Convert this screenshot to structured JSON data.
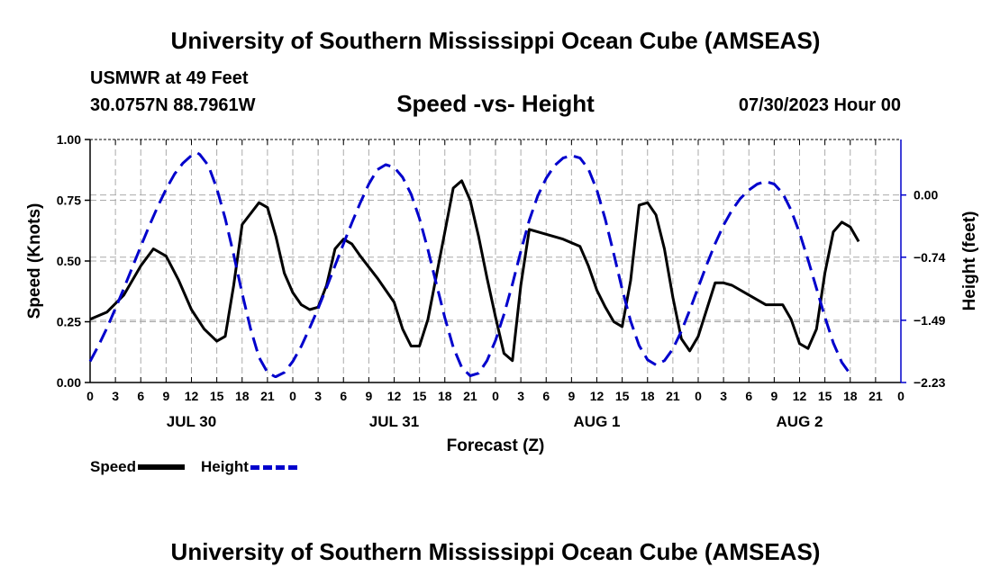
{
  "header": {
    "title": "University of Southern Mississippi Ocean Cube (AMSEAS)",
    "station": "USMWR at 49 Feet",
    "coords": "30.0757N  88.7961W",
    "chart_title": "Speed -vs- Height",
    "datetime": "07/30/2023 Hour 00"
  },
  "footer": {
    "title": "University of Southern Mississippi Ocean Cube (AMSEAS)"
  },
  "legend": {
    "speed_label": "Speed",
    "height_label": "Height"
  },
  "chart_data": {
    "type": "line",
    "title": "Speed -vs- Height",
    "xlabel": "Forecast (Z)",
    "ylabel": "Speed (Knots)",
    "y2label": "Height (feet)",
    "xlim": [
      0,
      96
    ],
    "ylim": [
      0,
      1
    ],
    "y2lim": [
      -2.23,
      0.66
    ],
    "x_ticks": [
      0,
      3,
      6,
      9,
      12,
      15,
      18,
      21,
      24,
      27,
      30,
      33,
      36,
      39,
      42,
      45,
      48,
      51,
      54,
      57,
      60,
      63,
      66,
      69,
      72,
      75,
      78,
      81,
      84,
      87,
      90,
      93,
      96
    ],
    "x_tick_labels": [
      "0",
      "3",
      "6",
      "9",
      "12",
      "15",
      "18",
      "21",
      "0",
      "3",
      "6",
      "9",
      "12",
      "15",
      "18",
      "21",
      "0",
      "3",
      "6",
      "9",
      "12",
      "15",
      "18",
      "21",
      "0",
      "3",
      "6",
      "9",
      "12",
      "15",
      "18",
      "21",
      "0"
    ],
    "date_labels": [
      {
        "x": 12,
        "label": "JUL 30"
      },
      {
        "x": 36,
        "label": "JUL 31"
      },
      {
        "x": 60,
        "label": "AUG 1"
      },
      {
        "x": 84,
        "label": "AUG 2"
      }
    ],
    "y_ticks": [
      0,
      0.25,
      0.5,
      0.75,
      1.0
    ],
    "y_tick_labels": [
      "0.00",
      "0.25",
      "0.50",
      "0.75",
      "1.00"
    ],
    "y2_ticks": [
      0,
      -0.74,
      -1.49,
      -2.23
    ],
    "y2_tick_labels": [
      "0.00",
      "−0.74",
      "−1.49",
      "−2.23"
    ],
    "grid": true,
    "series": [
      {
        "name": "Speed",
        "axis": "left",
        "color": "#000000",
        "style": "solid",
        "points": [
          [
            0,
            0.26
          ],
          [
            2,
            0.29
          ],
          [
            4,
            0.36
          ],
          [
            6,
            0.48
          ],
          [
            7.5,
            0.55
          ],
          [
            9,
            0.52
          ],
          [
            10.5,
            0.42
          ],
          [
            12,
            0.3
          ],
          [
            13.5,
            0.22
          ],
          [
            15,
            0.17
          ],
          [
            16,
            0.19
          ],
          [
            17,
            0.4
          ],
          [
            18,
            0.65
          ],
          [
            20,
            0.74
          ],
          [
            21,
            0.72
          ],
          [
            22,
            0.6
          ],
          [
            23,
            0.45
          ],
          [
            24,
            0.37
          ],
          [
            25,
            0.32
          ],
          [
            26,
            0.3
          ],
          [
            27,
            0.31
          ],
          [
            28,
            0.4
          ],
          [
            29,
            0.55
          ],
          [
            30,
            0.59
          ],
          [
            31,
            0.57
          ],
          [
            32,
            0.52
          ],
          [
            34,
            0.43
          ],
          [
            36,
            0.33
          ],
          [
            37,
            0.22
          ],
          [
            38,
            0.15
          ],
          [
            39,
            0.15
          ],
          [
            40,
            0.26
          ],
          [
            41,
            0.44
          ],
          [
            42,
            0.62
          ],
          [
            43,
            0.8
          ],
          [
            44,
            0.83
          ],
          [
            45,
            0.75
          ],
          [
            46,
            0.6
          ],
          [
            47,
            0.43
          ],
          [
            48,
            0.27
          ],
          [
            49,
            0.12
          ],
          [
            50,
            0.09
          ],
          [
            51,
            0.4
          ],
          [
            52,
            0.63
          ],
          [
            54,
            0.61
          ],
          [
            56,
            0.59
          ],
          [
            58,
            0.56
          ],
          [
            59,
            0.48
          ],
          [
            60,
            0.38
          ],
          [
            61,
            0.31
          ],
          [
            62,
            0.25
          ],
          [
            63,
            0.23
          ],
          [
            64,
            0.42
          ],
          [
            65,
            0.73
          ],
          [
            66,
            0.74
          ],
          [
            67,
            0.69
          ],
          [
            68,
            0.55
          ],
          [
            69,
            0.35
          ],
          [
            70,
            0.18
          ],
          [
            71,
            0.13
          ],
          [
            72,
            0.19
          ],
          [
            73,
            0.3
          ],
          [
            74,
            0.41
          ],
          [
            75,
            0.41
          ],
          [
            76,
            0.4
          ],
          [
            78,
            0.36
          ],
          [
            80,
            0.32
          ],
          [
            82,
            0.32
          ],
          [
            83,
            0.26
          ],
          [
            84,
            0.16
          ],
          [
            85,
            0.14
          ],
          [
            86,
            0.22
          ],
          [
            87,
            0.45
          ],
          [
            88,
            0.62
          ],
          [
            89,
            0.66
          ],
          [
            90,
            0.64
          ],
          [
            91,
            0.58
          ]
        ]
      },
      {
        "name": "Height",
        "axis": "right",
        "color": "#0000cc",
        "style": "dashed",
        "points": [
          [
            0,
            -1.98
          ],
          [
            1,
            -1.79
          ],
          [
            2,
            -1.58
          ],
          [
            3,
            -1.35
          ],
          [
            4,
            -1.11
          ],
          [
            5,
            -0.86
          ],
          [
            6,
            -0.61
          ],
          [
            7,
            -0.37
          ],
          [
            8,
            -0.14
          ],
          [
            9,
            0.07
          ],
          [
            10,
            0.25
          ],
          [
            11,
            0.38
          ],
          [
            12,
            0.47
          ],
          [
            12.7,
            0.5
          ],
          [
            13,
            0.48
          ],
          [
            14,
            0.35
          ],
          [
            15,
            0.08
          ],
          [
            16,
            -0.28
          ],
          [
            17,
            -0.71
          ],
          [
            18,
            -1.17
          ],
          [
            19,
            -1.59
          ],
          [
            20,
            -1.93
          ],
          [
            21,
            -2.11
          ],
          [
            21.9,
            -2.16
          ],
          [
            22,
            -2.16
          ],
          [
            23,
            -2.11
          ],
          [
            24,
            -1.98
          ],
          [
            25,
            -1.8
          ],
          [
            26,
            -1.58
          ],
          [
            27,
            -1.35
          ],
          [
            28,
            -1.1
          ],
          [
            29,
            -0.84
          ],
          [
            30,
            -0.58
          ],
          [
            31,
            -0.33
          ],
          [
            32,
            -0.09
          ],
          [
            33,
            0.13
          ],
          [
            34,
            0.3
          ],
          [
            35,
            0.36
          ],
          [
            36,
            0.33
          ],
          [
            37,
            0.21
          ],
          [
            38,
            0.01
          ],
          [
            39,
            -0.28
          ],
          [
            40,
            -0.65
          ],
          [
            41,
            -1.06
          ],
          [
            42,
            -1.46
          ],
          [
            43,
            -1.81
          ],
          [
            44,
            -2.05
          ],
          [
            45,
            -2.15
          ],
          [
            46,
            -2.12
          ],
          [
            47,
            -1.97
          ],
          [
            48,
            -1.73
          ],
          [
            49,
            -1.42
          ],
          [
            50,
            -1.06
          ],
          [
            51,
            -0.67
          ],
          [
            52,
            -0.3
          ],
          [
            53,
            -0.01
          ],
          [
            54,
            0.2
          ],
          [
            55,
            0.35
          ],
          [
            56,
            0.44
          ],
          [
            57,
            0.47
          ],
          [
            58,
            0.44
          ],
          [
            59,
            0.31
          ],
          [
            60,
            0.06
          ],
          [
            61,
            -0.29
          ],
          [
            62,
            -0.7
          ],
          [
            63,
            -1.12
          ],
          [
            64,
            -1.5
          ],
          [
            65,
            -1.79
          ],
          [
            66,
            -1.96
          ],
          [
            67,
            -2.02
          ],
          [
            68,
            -1.97
          ],
          [
            69,
            -1.83
          ],
          [
            70,
            -1.62
          ],
          [
            71,
            -1.37
          ],
          [
            72,
            -1.1
          ],
          [
            73,
            -0.83
          ],
          [
            74,
            -0.58
          ],
          [
            75,
            -0.36
          ],
          [
            76,
            -0.18
          ],
          [
            77,
            -0.04
          ],
          [
            78,
            0.06
          ],
          [
            79,
            0.13
          ],
          [
            80,
            0.16
          ],
          [
            81,
            0.13
          ],
          [
            82,
            0.02
          ],
          [
            83,
            -0.18
          ],
          [
            84,
            -0.45
          ],
          [
            85,
            -0.77
          ],
          [
            86,
            -1.11
          ],
          [
            87,
            -1.45
          ],
          [
            88,
            -1.76
          ],
          [
            89,
            -1.99
          ],
          [
            90,
            -2.13
          ]
        ]
      }
    ]
  }
}
